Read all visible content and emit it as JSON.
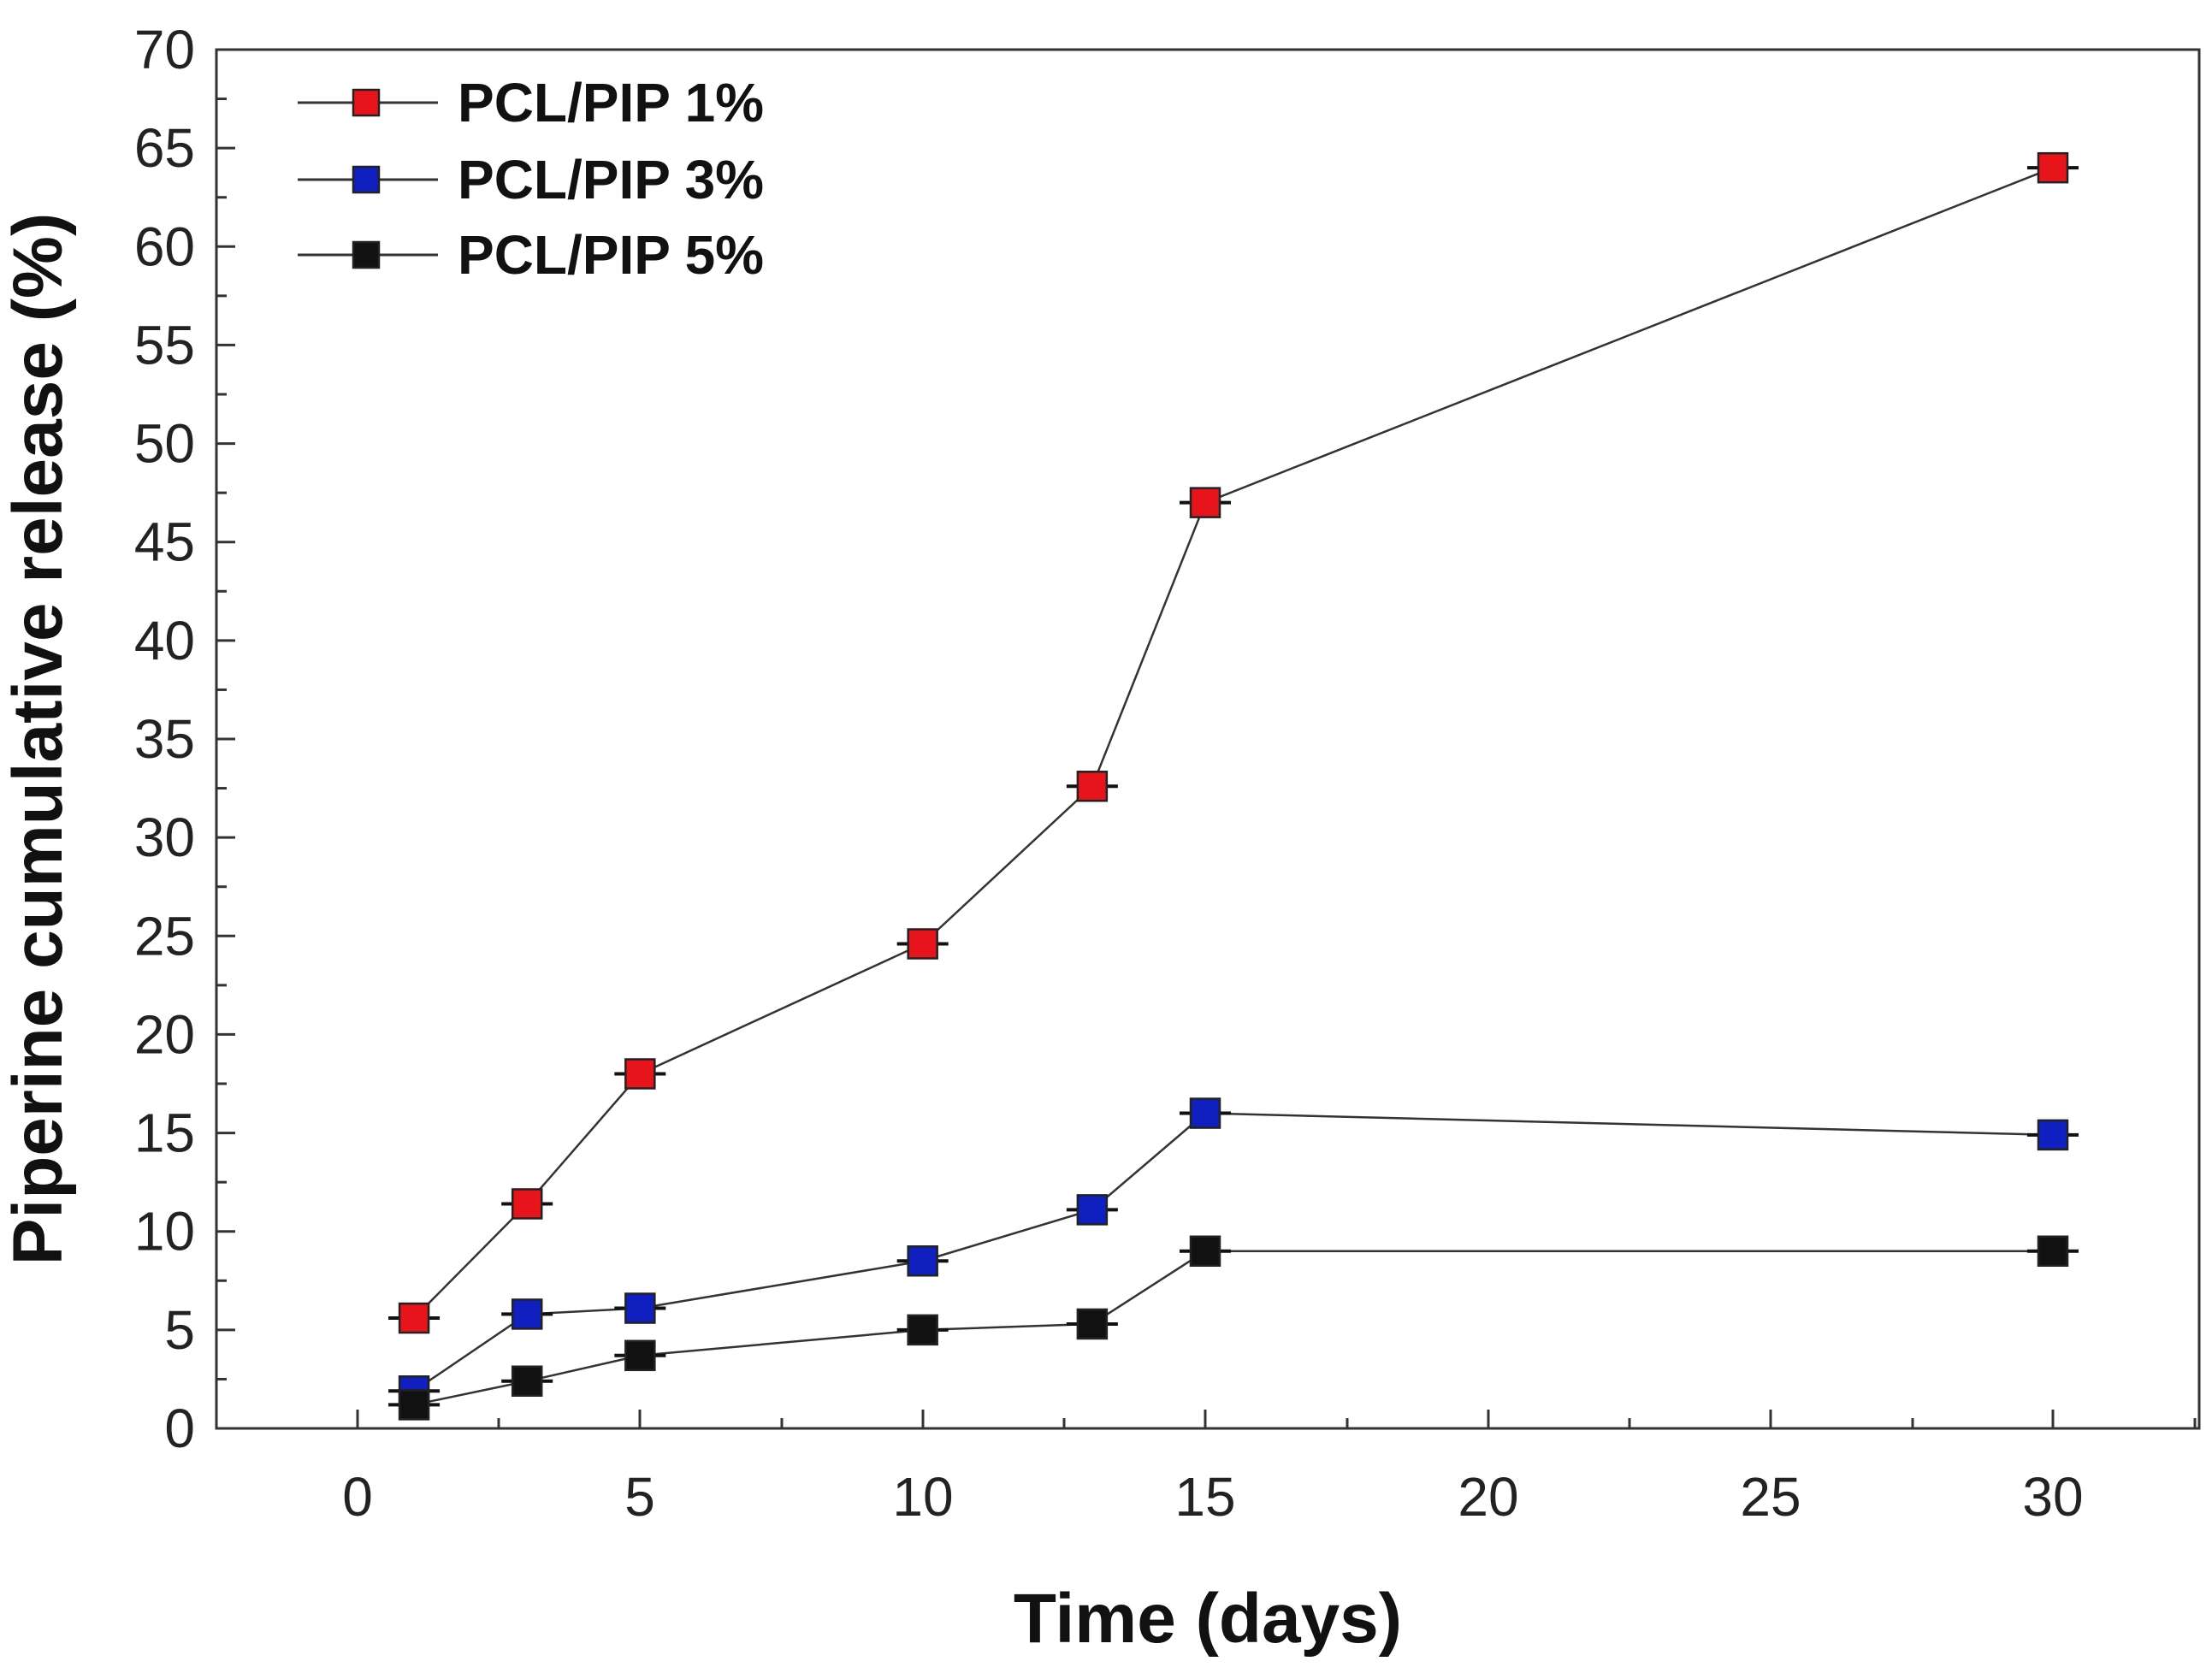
{
  "chart_data": {
    "type": "line",
    "title": "",
    "xlabel": "Time (days)",
    "ylabel": "Piperine cumulative release (%)",
    "x_tick_labels": [
      "0",
      "5",
      "10",
      "15",
      "20",
      "25",
      "30"
    ],
    "y_ticks": [
      0,
      5,
      10,
      15,
      20,
      25,
      30,
      35,
      40,
      45,
      50,
      55,
      60,
      65,
      70
    ],
    "ylim": [
      0,
      70
    ],
    "x": [
      1,
      3,
      5,
      10,
      13,
      15,
      30
    ],
    "legend_position": "top-left",
    "grid": false,
    "series": [
      {
        "name": "PCL/PIP 1%",
        "color": "#e8141b",
        "values": [
          5.6,
          11.4,
          18.0,
          24.6,
          32.6,
          47.0,
          64.0
        ]
      },
      {
        "name": "PCL/PIP 3%",
        "color": "#1020c0",
        "values": [
          1.9,
          5.8,
          6.1,
          8.5,
          11.1,
          16.0,
          14.9
        ]
      },
      {
        "name": "PCL/PIP 5%",
        "color": "#111111",
        "values": [
          1.2,
          2.4,
          3.7,
          5.0,
          5.3,
          9.0,
          9.0
        ]
      }
    ]
  }
}
